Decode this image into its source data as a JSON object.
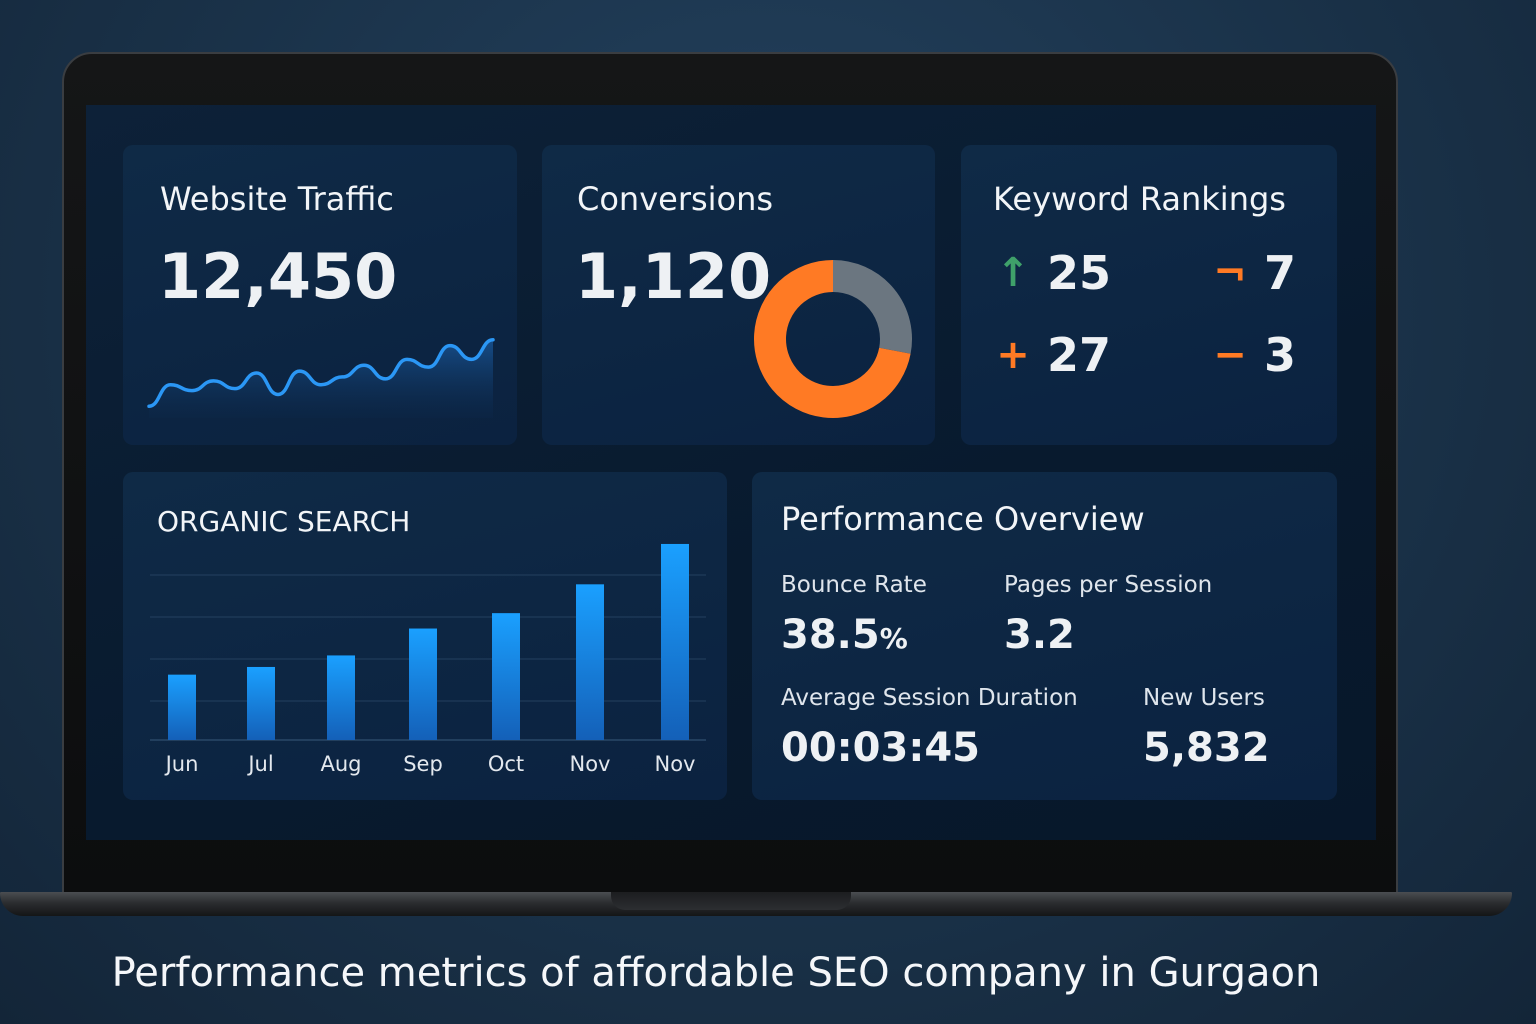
{
  "website_traffic": {
    "title": "Website Traffic",
    "value": "12,450"
  },
  "conversions": {
    "title": "Conversions",
    "value": "1,120"
  },
  "keyword_rankings": {
    "title": "Keyword Rankings",
    "items": [
      {
        "icon": "arrow-up-icon",
        "glyph": "↑",
        "value": "25",
        "color": "#3fa16a"
      },
      {
        "icon": "corner-icon",
        "glyph": "¬",
        "value": "7",
        "color": "#ff7a24"
      },
      {
        "icon": "plus-icon",
        "glyph": "+",
        "value": "27",
        "color": "#ff7a24"
      },
      {
        "icon": "minus-icon",
        "glyph": "−",
        "value": "3",
        "color": "#ff7a24"
      }
    ]
  },
  "organic_search": {
    "title": "ORGANIC SEARCH"
  },
  "performance_overview": {
    "title": "Performance Overview",
    "bounce_rate": {
      "label": "Bounce Rate",
      "value": "38.5",
      "unit": "%"
    },
    "pages_per_session": {
      "label": "Pages per Session",
      "value": "3.2"
    },
    "avg_session_duration": {
      "label": "Average Session Duration",
      "value": "00:03:45"
    },
    "new_users": {
      "label": "New Users",
      "value": "5,832"
    }
  },
  "caption": "Performance metrics of affordable SEO company in Gurgaon",
  "colors": {
    "accent_blue": "#1e90f0",
    "accent_orange": "#ff7a24",
    "donut_gray": "#6b7680",
    "up_green": "#3fa16a"
  },
  "chart_data": [
    {
      "type": "line",
      "values": [
        12,
        34,
        28,
        38,
        30,
        46,
        24,
        48,
        34,
        42,
        54,
        40,
        60,
        52,
        74,
        60,
        80
      ]
    },
    {
      "type": "pie",
      "values": [
        72,
        28
      ],
      "colors": [
        "#ff7a24",
        "#6b7680"
      ]
    },
    {
      "type": "bar",
      "categories": [
        "Jun",
        "Jul",
        "Aug",
        "Sep",
        "Oct",
        "Nov",
        "Nov"
      ],
      "values": [
        34,
        38,
        44,
        58,
        66,
        81,
        102
      ],
      "ylim": [
        0,
        100
      ],
      "grid": true
    }
  ]
}
